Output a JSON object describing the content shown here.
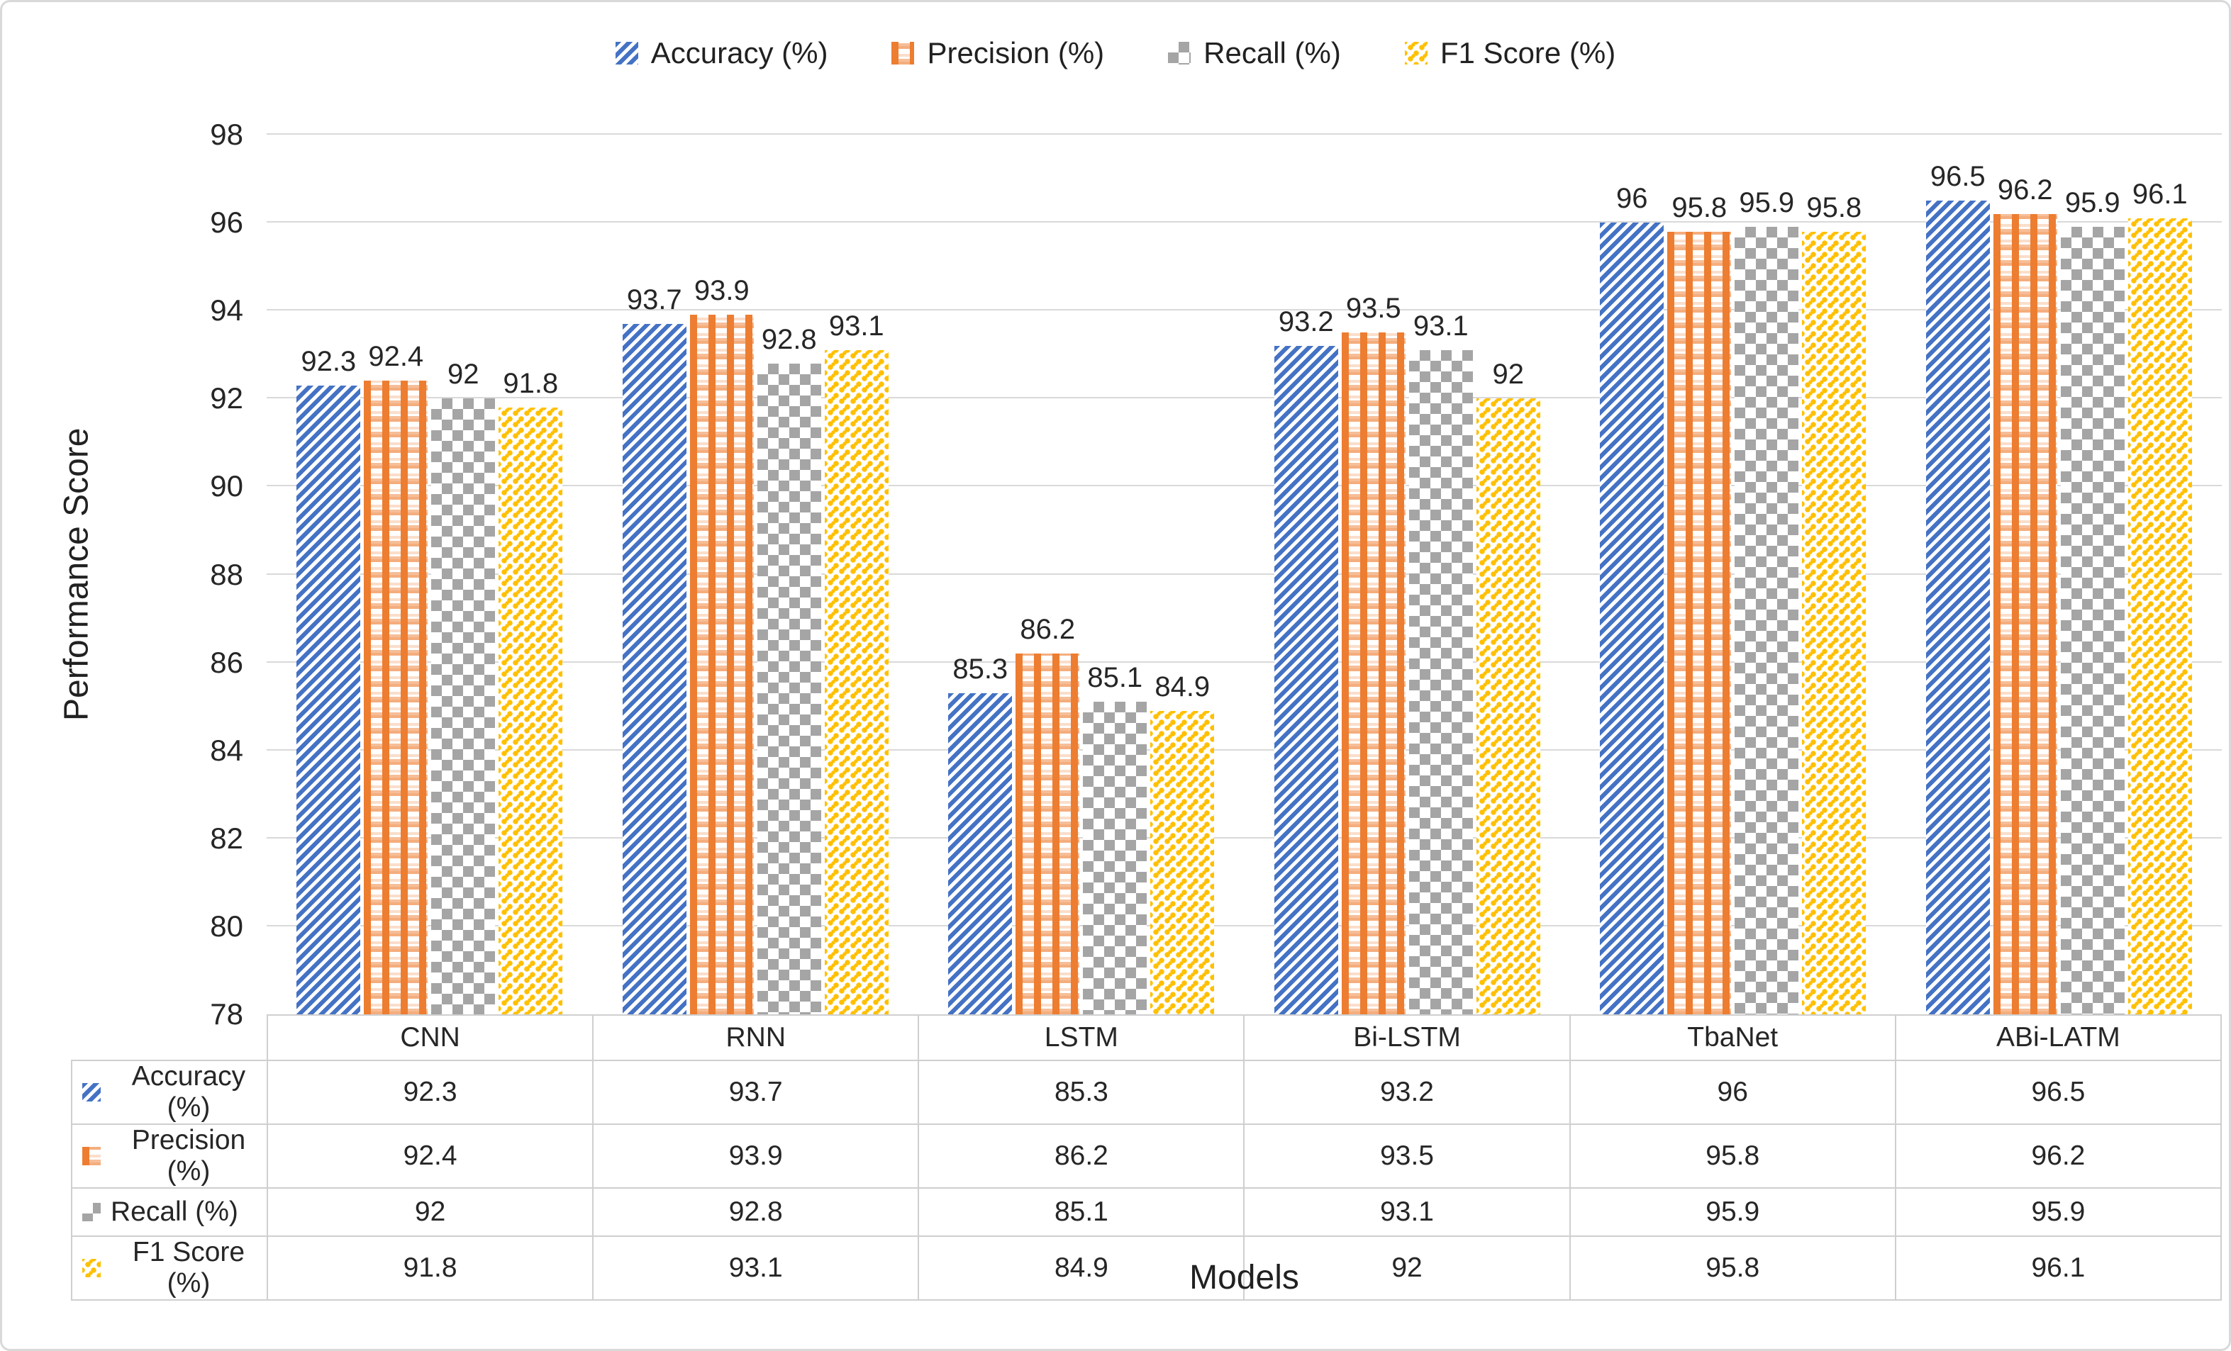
{
  "chart_data": {
    "type": "bar",
    "title": "",
    "categories": [
      "CNN",
      "RNN",
      "LSTM",
      "Bi-LSTM",
      "TbaNet",
      "ABi-LATM"
    ],
    "series": [
      {
        "name": "Accuracy (%)",
        "values": [
          92.3,
          93.7,
          85.3,
          93.2,
          96,
          96.5
        ],
        "color": "#4472C4",
        "pattern": "diagonal-stripes"
      },
      {
        "name": "Precision (%)",
        "values": [
          92.4,
          93.9,
          86.2,
          93.5,
          95.8,
          96.2
        ],
        "color": "#ED7D31",
        "pattern": "plaid"
      },
      {
        "name": "Recall (%)",
        "values": [
          92,
          92.8,
          85.1,
          93.1,
          95.9,
          95.9
        ],
        "color": "#A5A5A5",
        "pattern": "checker"
      },
      {
        "name": "F1 Score (%)",
        "values": [
          91.8,
          93.1,
          84.9,
          92,
          95.8,
          96.1
        ],
        "color": "#FFC000",
        "pattern": "dots"
      }
    ],
    "xlabel": "Models",
    "ylabel": "Performance Score",
    "ylim": [
      78,
      98
    ],
    "yticks": [
      78,
      80,
      82,
      84,
      86,
      90,
      88,
      92,
      94,
      96,
      98
    ],
    "grid": true,
    "legend_position": "top",
    "data_table_shown": true,
    "colors": {
      "gridline": "#d9d9d9",
      "axis_line": "#bfbfbf",
      "table_border": "#cfcfcf",
      "text": "#262626"
    }
  }
}
